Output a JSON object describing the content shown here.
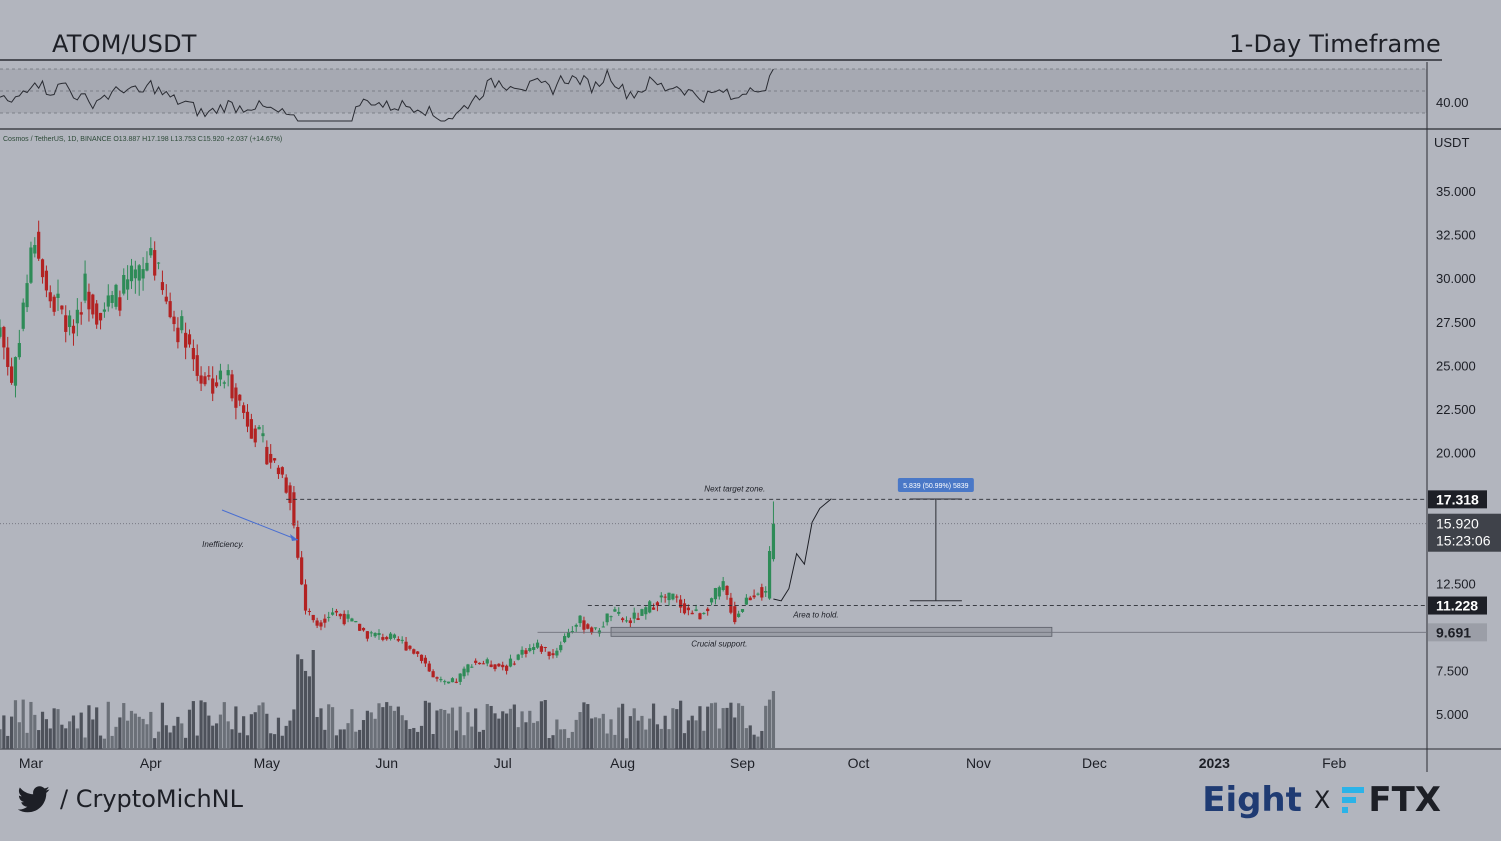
{
  "header": {
    "pair": "ATOM/USDT",
    "timeframe": "1-Day Timeframe"
  },
  "footer": {
    "handle": "/ CryptoMichNL",
    "brand_left": "Eight",
    "brand_sep": "X",
    "brand_right": "FTX",
    "icons": [
      "twitter-bird-icon",
      "ftx-logo-icon"
    ]
  },
  "symbol_info": "Cosmos / TetherUS, 1D, BINANCE  O13.887  H17.198  L13.753  C15.920  +2.037 (+14.67%)",
  "colors": {
    "background": "#b2b5be",
    "up": "#2e8b57",
    "down": "#b22222",
    "volume": "#5a5e68",
    "annotation_arrow": "#4a6fd1",
    "label_dark": "#1d1f26",
    "label_blue": "#4a78c7",
    "brand_eight": "#1f3b73",
    "ftx_accent": "#2bb3e8"
  },
  "chart_data": {
    "type": "candlestick",
    "title": "ATOM/USDT",
    "subtitle": "1-Day Timeframe",
    "ylabel": "USDT",
    "ylim": [
      3.0,
      38.5
    ],
    "y_ticks": [
      "35.000",
      "32.500",
      "30.000",
      "27.500",
      "25.000",
      "22.500",
      "20.000",
      "12.500",
      "7.500",
      "5.000"
    ],
    "x_ticks": [
      "Mar",
      "Apr",
      "May",
      "Jun",
      "Jul",
      "Aug",
      "Sep",
      "Oct",
      "Nov",
      "Dec",
      "2023",
      "Feb"
    ],
    "x_start": "2022-02-21",
    "x_end": "2023-02-25",
    "last_date": "2022-09-09",
    "current_price": "15.920",
    "countdown": "15:23:06",
    "ohlc": {
      "open": 13.887,
      "high": 17.198,
      "low": 13.753,
      "close": 15.92,
      "change": "+2.037 (+14.67%)"
    },
    "close_path": [
      [
        "2022-02-21",
        27.2
      ],
      [
        "2022-02-24",
        24.0
      ],
      [
        "2022-02-27",
        28.5
      ],
      [
        "2022-03-02",
        32.5
      ],
      [
        "2022-03-05",
        29.0
      ],
      [
        "2022-03-08",
        28.4
      ],
      [
        "2022-03-11",
        27.0
      ],
      [
        "2022-03-15",
        29.5
      ],
      [
        "2022-03-18",
        28.2
      ],
      [
        "2022-03-22",
        28.6
      ],
      [
        "2022-03-26",
        29.6
      ],
      [
        "2022-03-30",
        30.2
      ],
      [
        "2022-04-01",
        31.8
      ],
      [
        "2022-04-04",
        29.0
      ],
      [
        "2022-04-07",
        27.4
      ],
      [
        "2022-04-10",
        26.9
      ],
      [
        "2022-04-13",
        24.6
      ],
      [
        "2022-04-17",
        24.0
      ],
      [
        "2022-04-21",
        24.3
      ],
      [
        "2022-04-25",
        22.3
      ],
      [
        "2022-04-29",
        20.8
      ],
      [
        "2022-05-02",
        19.6
      ],
      [
        "2022-05-05",
        18.7
      ],
      [
        "2022-05-07",
        17.6
      ],
      [
        "2022-05-09",
        14.0
      ],
      [
        "2022-05-11",
        11.0
      ],
      [
        "2022-05-14",
        10.2
      ],
      [
        "2022-05-18",
        10.9
      ],
      [
        "2022-05-22",
        10.4
      ],
      [
        "2022-05-27",
        9.6
      ],
      [
        "2022-06-01",
        9.4
      ],
      [
        "2022-06-05",
        9.1
      ],
      [
        "2022-06-10",
        8.3
      ],
      [
        "2022-06-13",
        7.1
      ],
      [
        "2022-06-16",
        6.7
      ],
      [
        "2022-06-19",
        6.9
      ],
      [
        "2022-06-23",
        8.0
      ],
      [
        "2022-06-27",
        7.9
      ],
      [
        "2022-07-02",
        7.7
      ],
      [
        "2022-07-06",
        8.6
      ],
      [
        "2022-07-10",
        8.9
      ],
      [
        "2022-07-14",
        8.4
      ],
      [
        "2022-07-18",
        9.8
      ],
      [
        "2022-07-21",
        10.3
      ],
      [
        "2022-07-25",
        9.7
      ],
      [
        "2022-07-29",
        10.8
      ],
      [
        "2022-08-02",
        10.3
      ],
      [
        "2022-08-06",
        10.7
      ],
      [
        "2022-08-10",
        11.6
      ],
      [
        "2022-08-14",
        11.7
      ],
      [
        "2022-08-18",
        10.9
      ],
      [
        "2022-08-21",
        10.7
      ],
      [
        "2022-08-24",
        11.6
      ],
      [
        "2022-08-27",
        12.3
      ],
      [
        "2022-08-30",
        10.5
      ],
      [
        "2022-09-02",
        11.6
      ],
      [
        "2022-09-05",
        12.2
      ],
      [
        "2022-09-07",
        11.7
      ],
      [
        "2022-09-08",
        13.9
      ],
      [
        "2022-09-09",
        15.92
      ]
    ],
    "projection": [
      [
        "2022-09-09",
        11.6
      ],
      [
        "2022-09-11",
        11.5
      ],
      [
        "2022-09-13",
        12.2
      ],
      [
        "2022-09-15",
        14.2
      ],
      [
        "2022-09-17",
        13.6
      ],
      [
        "2022-09-19",
        16.0
      ],
      [
        "2022-09-21",
        16.8
      ],
      [
        "2022-09-24",
        17.35
      ]
    ],
    "oscillator": {
      "label": "40.00"
    },
    "levels": [
      {
        "price": 17.318,
        "label": "17.318",
        "name": "Next target zone."
      },
      {
        "price": 11.228,
        "label": "11.228",
        "name": "Area to hold."
      },
      {
        "price": 9.691,
        "label": "9.691",
        "name": "Crucial support."
      }
    ],
    "measure": {
      "label": "5.839 (50.99%) 5839",
      "from": 11.5,
      "to": 17.34
    },
    "annotations": [
      {
        "text": "Inefficiency."
      }
    ]
  }
}
